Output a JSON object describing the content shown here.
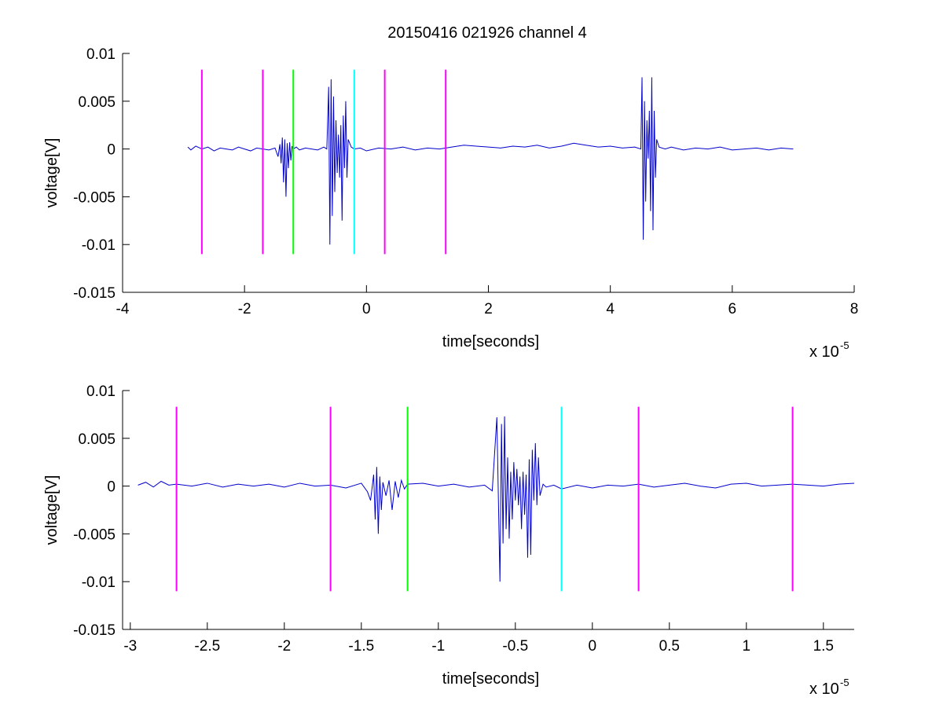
{
  "figure": {
    "title": "20150416 021926 channel 4"
  },
  "chart_data": [
    {
      "type": "line",
      "title": "20150416 021926 channel 4",
      "xlabel": "time[seconds]",
      "ylabel": "voltage[V]",
      "x_exponent_label": "x 10",
      "x_exponent_power": "-5",
      "xlim": [
        -4,
        8
      ],
      "ylim": [
        -0.015,
        0.01
      ],
      "xticks": [
        -4,
        -2,
        0,
        2,
        4,
        6,
        8
      ],
      "xtick_labels": [
        "-4",
        "-2",
        "0",
        "2",
        "4",
        "6",
        "8"
      ],
      "yticks": [
        -0.015,
        -0.01,
        -0.005,
        0,
        0.005,
        0.01
      ],
      "ytick_labels": [
        "-0.015",
        "-0.01",
        "-0.005",
        "0",
        "0.005",
        "0.01"
      ],
      "grid": false,
      "series": [
        {
          "color": "#0000cc",
          "x": [
            -2.93,
            -2.88,
            -2.8,
            -2.7,
            -2.6,
            -2.5,
            -2.4,
            -2.3,
            -2.2,
            -2.1,
            -2.0,
            -1.9,
            -1.8,
            -1.7,
            -1.6,
            -1.5,
            -1.45,
            -1.42,
            -1.4,
            -1.38,
            -1.36,
            -1.34,
            -1.32,
            -1.3,
            -1.28,
            -1.26,
            -1.24,
            -1.22,
            -1.2,
            -1.15,
            -1.1,
            -1.0,
            -0.9,
            -0.8,
            -0.7,
            -0.65,
            -0.62,
            -0.6,
            -0.58,
            -0.56,
            -0.54,
            -0.52,
            -0.5,
            -0.48,
            -0.46,
            -0.44,
            -0.42,
            -0.4,
            -0.38,
            -0.36,
            -0.34,
            -0.32,
            -0.3,
            -0.25,
            -0.2,
            -0.1,
            0.0,
            0.2,
            0.4,
            0.6,
            0.8,
            1.0,
            1.2,
            1.4,
            1.6,
            1.8,
            2.0,
            2.2,
            2.4,
            2.6,
            2.8,
            3.0,
            3.2,
            3.4,
            3.6,
            3.8,
            4.0,
            4.2,
            4.4,
            4.5,
            4.52,
            4.54,
            4.56,
            4.58,
            4.6,
            4.62,
            4.64,
            4.66,
            4.68,
            4.7,
            4.72,
            4.74,
            4.76,
            4.8,
            4.9,
            5.0,
            5.2,
            5.4,
            5.6,
            5.8,
            6.0,
            6.2,
            6.4,
            6.6,
            6.8,
            7.0
          ],
          "y": [
            0.0002,
            -0.0001,
            0.0003,
            0.0,
            0.0002,
            -0.0002,
            0.0001,
            0.0,
            -0.0001,
            0.0002,
            0.0,
            -0.0002,
            0.0001,
            0.0,
            -0.0001,
            0.0001,
            -0.0008,
            0.0005,
            -0.0015,
            0.0012,
            -0.0035,
            0.001,
            -0.005,
            0.0006,
            -0.002,
            0.0007,
            -0.0012,
            0.0003,
            0.0,
            0.0002,
            -0.0001,
            0.0001,
            0.0,
            -0.0001,
            0.0002,
            0.0,
            0.0065,
            -0.01,
            0.0073,
            -0.007,
            0.0055,
            -0.0045,
            0.003,
            -0.0025,
            0.0015,
            -0.003,
            0.0025,
            -0.0075,
            0.0035,
            -0.002,
            0.005,
            -0.003,
            0.001,
            0.0002,
            0.0,
            0.0001,
            -0.0002,
            0.0001,
            0.0,
            0.0002,
            -0.0001,
            0.0001,
            0.0,
            0.0002,
            0.0004,
            0.0003,
            0.0002,
            0.0001,
            0.0003,
            0.0002,
            0.0004,
            0.0001,
            0.0003,
            0.0006,
            0.0004,
            0.0002,
            0.0003,
            0.0001,
            0.0002,
            0.0,
            0.0075,
            -0.0095,
            0.005,
            -0.0055,
            0.003,
            -0.001,
            0.004,
            -0.0065,
            0.0075,
            -0.0085,
            0.004,
            -0.003,
            0.001,
            0.0002,
            0.0,
            0.0002,
            -0.0001,
            0.0001,
            0.0,
            0.0002,
            -0.0001,
            0.0,
            0.0001,
            -0.0001,
            0.0001,
            0.0
          ]
        }
      ],
      "markers": [
        {
          "x": -2.7,
          "color": "#ff00ff"
        },
        {
          "x": -1.7,
          "color": "#ff00ff"
        },
        {
          "x": -1.2,
          "color": "#00ff00"
        },
        {
          "x": -0.2,
          "color": "#00ffff"
        },
        {
          "x": 0.3,
          "color": "#ff00ff"
        },
        {
          "x": 1.3,
          "color": "#ff00ff"
        }
      ],
      "marker_yrange": [
        -0.011,
        0.0083
      ]
    },
    {
      "type": "line",
      "xlabel": "time[seconds]",
      "ylabel": "voltage[V]",
      "x_exponent_label": "x 10",
      "x_exponent_power": "-5",
      "xlim": [
        -3.05,
        1.7
      ],
      "ylim": [
        -0.015,
        0.01
      ],
      "xticks": [
        -3,
        -2.5,
        -2,
        -1.5,
        -1,
        -0.5,
        0,
        0.5,
        1,
        1.5
      ],
      "xtick_labels": [
        "-3",
        "-2.5",
        "-2",
        "-1.5",
        "-1",
        "-0.5",
        "0",
        "0.5",
        "1",
        "1.5"
      ],
      "yticks": [
        -0.015,
        -0.01,
        -0.005,
        0,
        0.005,
        0.01
      ],
      "ytick_labels": [
        "-0.015",
        "-0.01",
        "-0.005",
        "0",
        "0.005",
        "0.01"
      ],
      "grid": false,
      "series": [
        {
          "color": "#0000cc",
          "x": [
            -2.95,
            -2.9,
            -2.85,
            -2.8,
            -2.75,
            -2.7,
            -2.6,
            -2.5,
            -2.4,
            -2.3,
            -2.2,
            -2.1,
            -2.0,
            -1.9,
            -1.8,
            -1.7,
            -1.6,
            -1.5,
            -1.46,
            -1.44,
            -1.42,
            -1.41,
            -1.4,
            -1.39,
            -1.38,
            -1.37,
            -1.36,
            -1.34,
            -1.32,
            -1.3,
            -1.28,
            -1.26,
            -1.24,
            -1.22,
            -1.2,
            -1.1,
            -1.0,
            -0.9,
            -0.8,
            -0.7,
            -0.65,
            -0.62,
            -0.6,
            -0.59,
            -0.58,
            -0.57,
            -0.56,
            -0.55,
            -0.54,
            -0.53,
            -0.52,
            -0.51,
            -0.5,
            -0.49,
            -0.48,
            -0.47,
            -0.46,
            -0.45,
            -0.44,
            -0.43,
            -0.42,
            -0.41,
            -0.4,
            -0.39,
            -0.38,
            -0.37,
            -0.36,
            -0.35,
            -0.34,
            -0.32,
            -0.3,
            -0.25,
            -0.2,
            -0.1,
            0.0,
            0.1,
            0.2,
            0.3,
            0.4,
            0.5,
            0.6,
            0.7,
            0.8,
            0.9,
            1.0,
            1.1,
            1.2,
            1.3,
            1.4,
            1.5,
            1.6,
            1.7
          ],
          "y": [
            0.0001,
            0.0004,
            -0.0001,
            0.0005,
            0.0001,
            0.0002,
            0.0,
            0.0003,
            -0.0001,
            0.0002,
            0.0,
            0.0002,
            -0.0001,
            0.0003,
            0.0,
            0.0001,
            -0.0002,
            0.0003,
            -0.0006,
            -0.0015,
            0.0012,
            -0.0035,
            0.002,
            -0.005,
            0.001,
            -0.0025,
            0.0004,
            -0.001,
            0.0006,
            -0.0025,
            0.0005,
            -0.0012,
            0.0006,
            -0.0003,
            0.0002,
            0.0003,
            0.0,
            0.0002,
            -0.0001,
            0.0001,
            -0.0005,
            0.0072,
            -0.01,
            0.0065,
            -0.006,
            0.0073,
            -0.0045,
            0.003,
            -0.0055,
            0.0015,
            -0.0035,
            0.0025,
            -0.0015,
            0.0018,
            -0.002,
            0.001,
            -0.0045,
            0.0015,
            -0.003,
            0.0012,
            -0.0075,
            0.0028,
            -0.0072,
            0.0038,
            -0.0015,
            0.0045,
            -0.002,
            0.003,
            -0.001,
            0.0002,
            -0.0001,
            0.0001,
            -0.0003,
            0.0001,
            -0.0002,
            0.0001,
            0.0,
            0.0002,
            -0.0001,
            0.0001,
            0.0003,
            0.0,
            -0.0002,
            0.0002,
            0.0003,
            0.0,
            0.0001,
            0.0002,
            0.0001,
            0.0,
            0.0002,
            0.0003
          ]
        }
      ],
      "markers": [
        {
          "x": -2.7,
          "color": "#ff00ff"
        },
        {
          "x": -1.7,
          "color": "#ff00ff"
        },
        {
          "x": -1.2,
          "color": "#00ff00"
        },
        {
          "x": -0.2,
          "color": "#00ffff"
        },
        {
          "x": 0.3,
          "color": "#ff00ff"
        },
        {
          "x": 1.3,
          "color": "#ff00ff"
        }
      ],
      "marker_yrange": [
        -0.011,
        0.0083
      ]
    }
  ]
}
